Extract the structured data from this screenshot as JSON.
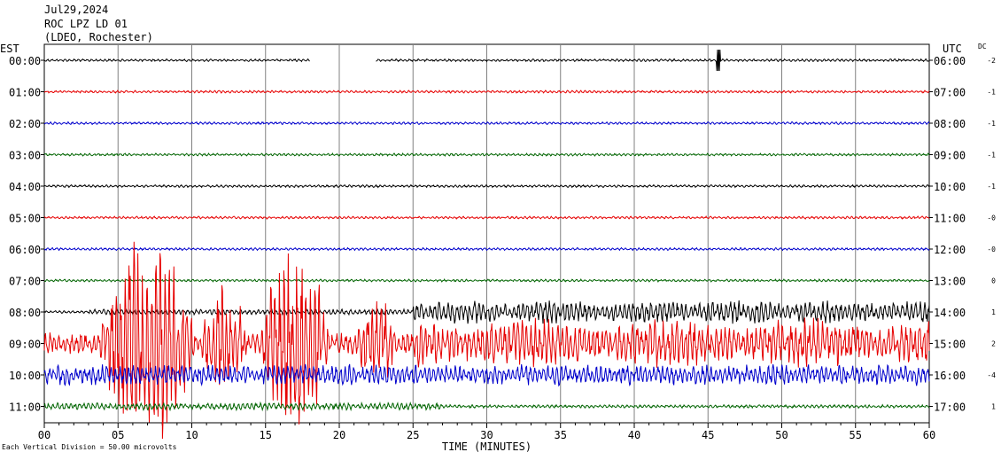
{
  "header": {
    "date": "Jul29,2024",
    "station": "ROC LPZ LD 01",
    "network": "(LDEO, Rochester)"
  },
  "left_axis_label": "EST",
  "right_axis_label": "UTC",
  "dc_label": "DC",
  "footnote": "Each Vertical Division = 50.00 microvolts",
  "colors": {
    "black": "#000000",
    "red": "#e60000",
    "blue": "#0000cc",
    "green": "#006400",
    "grid": "#808080"
  },
  "chart_data": {
    "type": "line",
    "title": "",
    "xlabel": "TIME (MINUTES)",
    "ylabel": "",
    "xlim": [
      0,
      60
    ],
    "x_ticks": [
      "00",
      "05",
      "10",
      "15",
      "20",
      "25",
      "30",
      "35",
      "40",
      "45",
      "50",
      "55",
      "60"
    ],
    "grid": true,
    "rows": [
      {
        "est": "00:00",
        "utc": "06:00",
        "dc": "-2",
        "color": "black",
        "activity": "quiet",
        "gap_minutes": [
          18,
          22.5
        ],
        "spike_minute": 45.7
      },
      {
        "est": "01:00",
        "utc": "07:00",
        "dc": "-1",
        "color": "red",
        "activity": "quiet"
      },
      {
        "est": "02:00",
        "utc": "08:00",
        "dc": "-1",
        "color": "blue",
        "activity": "quiet"
      },
      {
        "est": "03:00",
        "utc": "09:00",
        "dc": "-1",
        "color": "green",
        "activity": "quiet"
      },
      {
        "est": "04:00",
        "utc": "10:00",
        "dc": "-1",
        "color": "black",
        "activity": "quiet"
      },
      {
        "est": "05:00",
        "utc": "11:00",
        "dc": "-0",
        "color": "red",
        "activity": "quiet"
      },
      {
        "est": "06:00",
        "utc": "12:00",
        "dc": "-0",
        "color": "blue",
        "activity": "quiet"
      },
      {
        "est": "07:00",
        "utc": "13:00",
        "dc": "0",
        "color": "green",
        "activity": "quiet"
      },
      {
        "est": "08:00",
        "utc": "14:00",
        "dc": "1",
        "color": "black",
        "activity": "noisy-late"
      },
      {
        "est": "09:00",
        "utc": "15:00",
        "dc": "2",
        "color": "red",
        "activity": "earthquake"
      },
      {
        "est": "10:00",
        "utc": "16:00",
        "dc": "-4",
        "color": "blue",
        "activity": "moderate"
      },
      {
        "est": "11:00",
        "utc": "17:00",
        "dc": "1",
        "color": "green",
        "activity": "light-early"
      }
    ]
  }
}
